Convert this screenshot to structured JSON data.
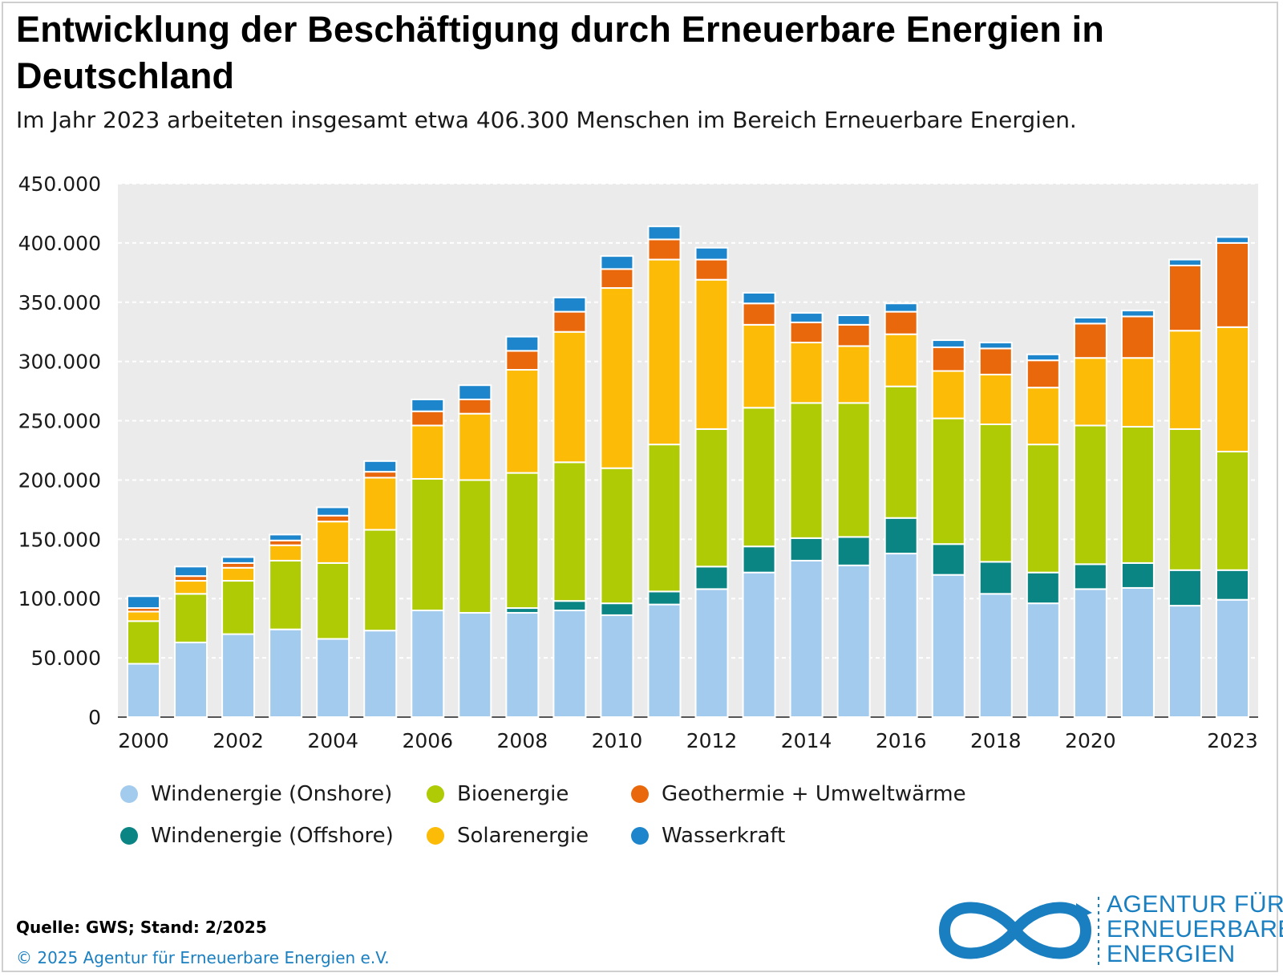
{
  "title": "Entwicklung der Beschäftigung durch Erneuerbare Energien in Deutschland",
  "subtitle": "Im Jahr 2023 arbeiteten insgesamt etwa 406.300 Menschen im Bereich Erneuerbare Energien.",
  "source": "Quelle: GWS; Stand: 2/2025",
  "copyright": "© 2025 Agentur für Erneuerbare Energien e.V.",
  "logo": {
    "line1": "AGENTUR FÜR",
    "line2": "ERNEUERBARE",
    "line3": "ENERGIEN"
  },
  "chart_data": {
    "type": "bar",
    "stacked": true,
    "title": "Entwicklung der Beschäftigung durch Erneuerbare Energien in Deutschland",
    "ylim": [
      0,
      450000
    ],
    "yticks": [
      0,
      50000,
      100000,
      150000,
      200000,
      250000,
      300000,
      350000,
      400000,
      450000
    ],
    "ytick_labels": [
      "0",
      "50.000",
      "100.000",
      "150.000",
      "200.000",
      "250.000",
      "300.000",
      "350.000",
      "400.000",
      "450.000"
    ],
    "categories": [
      "2000",
      "2001",
      "2002",
      "2003",
      "2004",
      "2005",
      "2006",
      "2007",
      "2008",
      "2009",
      "2010",
      "2011",
      "2012",
      "2013",
      "2014",
      "2015",
      "2016",
      "2017",
      "2018",
      "2019",
      "2020",
      "2021",
      "2022",
      "2023"
    ],
    "xtick_labels": [
      "2000",
      "",
      "2002",
      "",
      "2004",
      "",
      "2006",
      "",
      "2008",
      "",
      "2010",
      "",
      "2012",
      "",
      "2014",
      "",
      "2016",
      "",
      "2018",
      "",
      "2020",
      "",
      "",
      "2023"
    ],
    "grid": true,
    "legend_position": "bottom",
    "series": [
      {
        "name": "Windenergie (Onshore)",
        "color": "#a3cbee",
        "values": [
          45000,
          63000,
          70000,
          74000,
          66000,
          73000,
          90000,
          88000,
          88000,
          90000,
          86000,
          95000,
          108000,
          122000,
          132000,
          128000,
          138000,
          120000,
          104000,
          96000,
          108000,
          109000,
          94000,
          99000
        ]
      },
      {
        "name": "Windenergie (Offshore)",
        "color": "#0b8484",
        "values": [
          0,
          0,
          0,
          0,
          0,
          0,
          0,
          0,
          4000,
          8000,
          10000,
          11000,
          19000,
          22000,
          19000,
          24000,
          30000,
          26000,
          27000,
          26000,
          21000,
          21000,
          30000,
          25000
        ]
      },
      {
        "name": "Bioenergie",
        "color": "#aecb06",
        "values": [
          36000,
          41000,
          45000,
          58000,
          64000,
          85000,
          111000,
          112000,
          114000,
          117000,
          114000,
          124000,
          116000,
          117000,
          114000,
          113000,
          111000,
          106000,
          116000,
          108000,
          117000,
          115000,
          119000,
          100000
        ]
      },
      {
        "name": "Solarenergie",
        "color": "#fbbb07",
        "values": [
          8000,
          11000,
          11000,
          13000,
          35000,
          44000,
          45000,
          56000,
          87000,
          110000,
          152000,
          156000,
          126000,
          70000,
          51000,
          48000,
          44000,
          40000,
          42000,
          48000,
          57000,
          58000,
          83000,
          105000
        ]
      },
      {
        "name": "Geothermie + Umweltwärme",
        "color": "#e9680c",
        "values": [
          3000,
          4000,
          4000,
          4000,
          5000,
          5000,
          12000,
          12000,
          16000,
          17000,
          16000,
          17000,
          17000,
          18000,
          17000,
          18000,
          19000,
          20000,
          22000,
          23000,
          29000,
          35000,
          55000,
          71000
        ]
      },
      {
        "name": "Wasserkraft",
        "color": "#1c85cb",
        "values": [
          10000,
          8000,
          5000,
          5000,
          7000,
          9000,
          10000,
          12000,
          12000,
          12000,
          11000,
          11000,
          10000,
          9000,
          8000,
          8000,
          7000,
          6000,
          5000,
          5000,
          5000,
          5000,
          5000,
          5000
        ]
      }
    ]
  }
}
